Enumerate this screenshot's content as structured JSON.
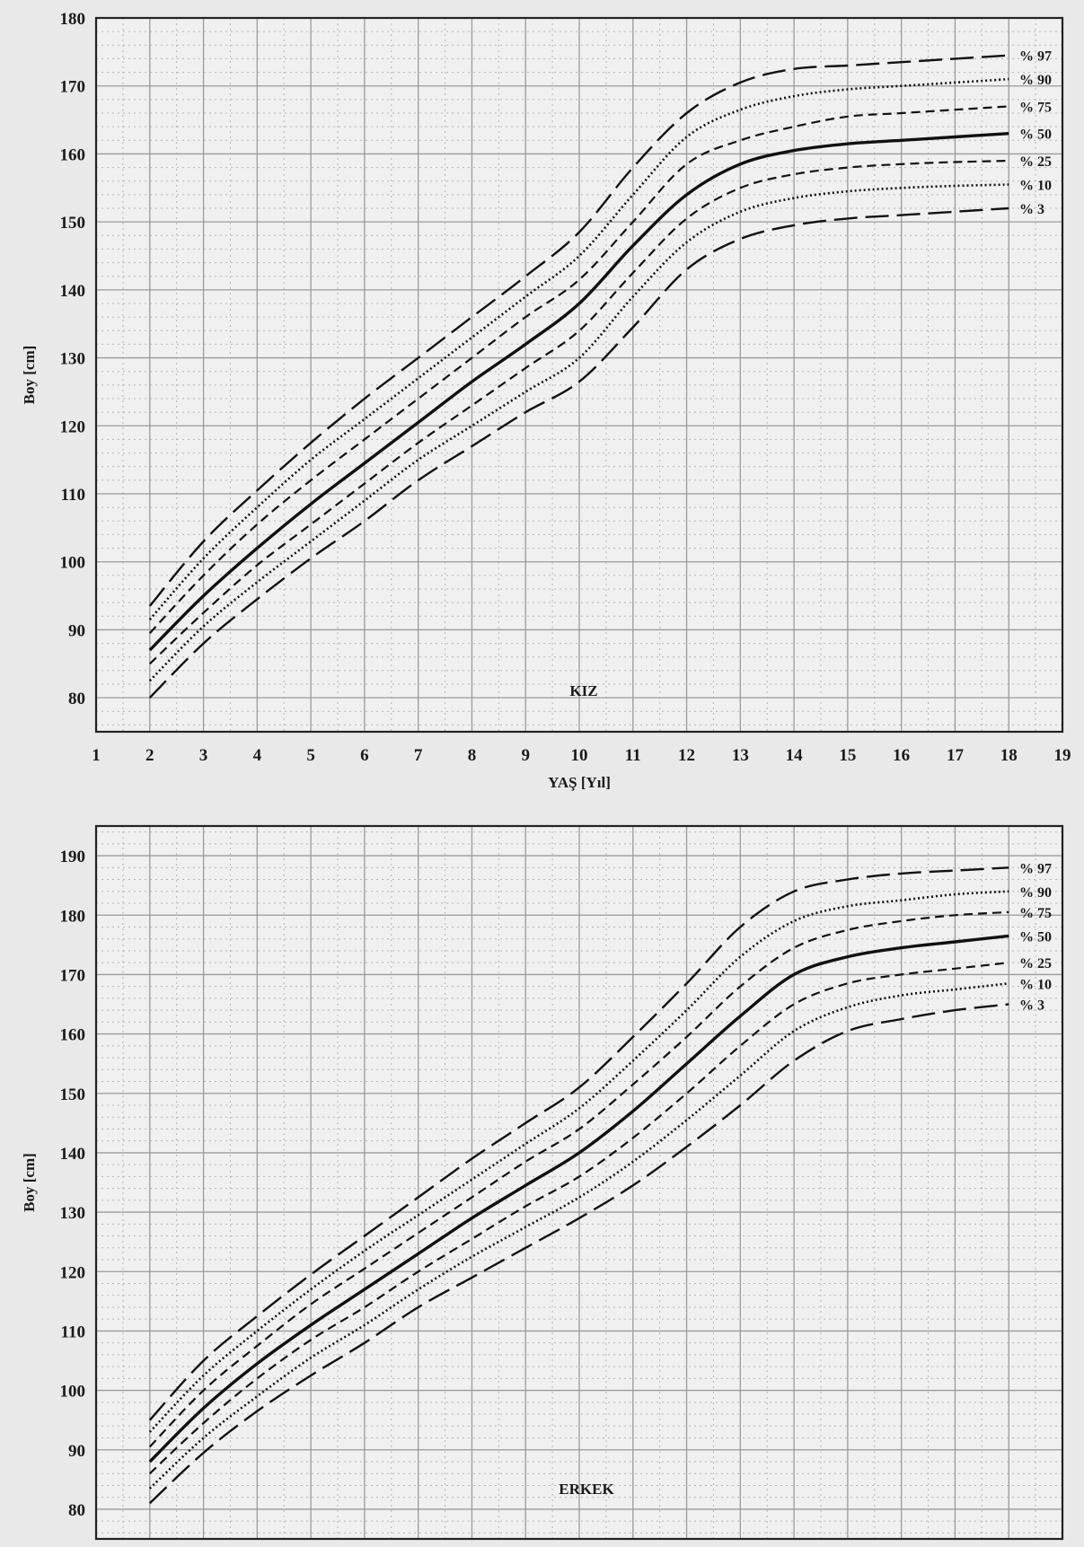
{
  "chart_data": [
    {
      "type": "line",
      "panel_label": "KIZ",
      "xlabel": "YAŞ [Yıl]",
      "ylabel": "Boy [cm]",
      "xlim": [
        1,
        19
      ],
      "ylim": [
        75,
        180
      ],
      "x_ticks": [
        1,
        2,
        3,
        4,
        5,
        6,
        7,
        8,
        9,
        10,
        11,
        12,
        13,
        14,
        15,
        16,
        17,
        18,
        19
      ],
      "y_ticks": [
        80,
        90,
        100,
        110,
        120,
        130,
        140,
        150,
        160,
        170,
        180
      ],
      "grid": true,
      "x": [
        2,
        3,
        4,
        5,
        6,
        7,
        8,
        9,
        10,
        11,
        12,
        13,
        14,
        15,
        16,
        17,
        18
      ],
      "series": [
        {
          "name": "% 97",
          "style": "long-dash",
          "values": [
            93.5,
            103,
            110.5,
            117.5,
            124,
            130,
            136,
            142,
            148.5,
            158,
            166,
            170.5,
            172.5,
            173,
            173.5,
            174,
            174.5
          ]
        },
        {
          "name": "% 90",
          "style": "dotted",
          "values": [
            91.5,
            100.5,
            108,
            115,
            121,
            127,
            133,
            139,
            145,
            154,
            162.5,
            166.5,
            168.5,
            169.5,
            170,
            170.5,
            171
          ]
        },
        {
          "name": "% 75",
          "style": "short-dash",
          "values": [
            89.5,
            98,
            105.5,
            112,
            118,
            124,
            130,
            136,
            141.5,
            150,
            158.5,
            162,
            164,
            165.5,
            166,
            166.5,
            167
          ]
        },
        {
          "name": "% 50",
          "style": "solid",
          "values": [
            87,
            95,
            102,
            108.5,
            114.5,
            120.5,
            126.5,
            132,
            138,
            146.5,
            154,
            158.5,
            160.5,
            161.5,
            162,
            162.5,
            163
          ]
        },
        {
          "name": "% 25",
          "style": "short-dash",
          "values": [
            85,
            92.5,
            99.5,
            105.5,
            111.5,
            117.5,
            123,
            128.5,
            134,
            142.5,
            150.5,
            155,
            157,
            158,
            158.5,
            158.8,
            159
          ]
        },
        {
          "name": "% 10",
          "style": "dotted",
          "values": [
            82.5,
            90.5,
            97,
            103,
            109,
            115,
            120,
            125,
            130,
            139,
            147,
            151.5,
            153.5,
            154.5,
            155,
            155.3,
            155.5
          ]
        },
        {
          "name": "% 3",
          "style": "long-dash",
          "values": [
            80,
            88,
            94.5,
            100.5,
            106,
            112,
            117,
            122,
            126.5,
            134.5,
            143,
            147.5,
            149.5,
            150.5,
            151,
            151.5,
            152
          ]
        }
      ]
    },
    {
      "type": "line",
      "panel_label": "ERKEK",
      "xlabel": "",
      "ylabel": "Boy [cm]",
      "xlim": [
        1,
        19
      ],
      "ylim": [
        75,
        195
      ],
      "x_ticks": [],
      "y_ticks": [
        80,
        90,
        100,
        110,
        120,
        130,
        140,
        150,
        160,
        170,
        180,
        190
      ],
      "grid": true,
      "x": [
        2,
        3,
        4,
        5,
        6,
        7,
        8,
        9,
        10,
        11,
        12,
        13,
        14,
        15,
        16,
        17,
        18
      ],
      "series": [
        {
          "name": "% 97",
          "style": "long-dash",
          "values": [
            95,
            105,
            112.5,
            119.5,
            126,
            132.5,
            139,
            145,
            151,
            159.5,
            168.5,
            178,
            184,
            186,
            187,
            187.5,
            188
          ]
        },
        {
          "name": "% 90",
          "style": "dotted",
          "values": [
            93,
            102.5,
            110,
            117,
            123.5,
            129.5,
            135.5,
            141.5,
            147.5,
            155.5,
            164,
            173,
            179,
            181.5,
            182.5,
            183.5,
            184
          ]
        },
        {
          "name": "% 75",
          "style": "short-dash",
          "values": [
            90.5,
            100,
            107.5,
            114.5,
            120.5,
            126.5,
            132.5,
            138.5,
            144,
            151.5,
            159.5,
            168,
            174.5,
            177.5,
            179,
            180,
            180.5
          ]
        },
        {
          "name": "% 50",
          "style": "solid",
          "values": [
            88,
            97,
            104.5,
            111,
            117,
            123,
            129,
            134.5,
            140,
            147,
            155,
            163,
            170,
            173,
            174.5,
            175.5,
            176.5
          ]
        },
        {
          "name": "% 25",
          "style": "short-dash",
          "values": [
            86,
            94.5,
            102,
            108.5,
            114,
            120,
            125.5,
            131,
            136,
            142.5,
            150,
            158,
            165,
            168.5,
            170,
            171,
            172
          ]
        },
        {
          "name": "% 10",
          "style": "dotted",
          "values": [
            83.5,
            92,
            99,
            105.5,
            111,
            117,
            122.5,
            127.5,
            132.5,
            138.5,
            145.5,
            153,
            160.5,
            164.5,
            166.5,
            167.5,
            168.5
          ]
        },
        {
          "name": "% 3",
          "style": "long-dash",
          "values": [
            81,
            89.5,
            96.5,
            102.5,
            108,
            114,
            119,
            124,
            129,
            134.5,
            141,
            148,
            155.5,
            160.5,
            162.5,
            164,
            165
          ]
        }
      ]
    }
  ]
}
